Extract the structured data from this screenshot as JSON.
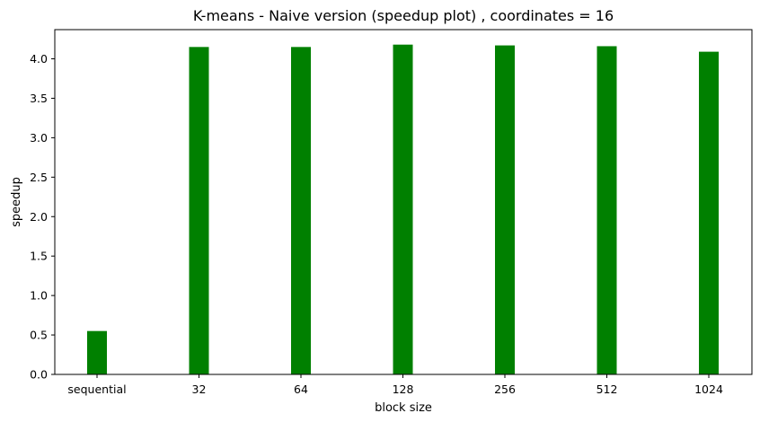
{
  "chart_data": {
    "type": "bar",
    "title": "K-means - Naive version (speedup plot) , coordinates = 16",
    "xlabel": "block size",
    "ylabel": "speedup",
    "categories": [
      "sequential",
      "32",
      "64",
      "128",
      "256",
      "512",
      "1024"
    ],
    "values": [
      0.55,
      4.15,
      4.15,
      4.18,
      4.17,
      4.16,
      4.09
    ],
    "ylim": [
      0,
      4.37
    ],
    "yticks": [
      "0.0",
      "0.5",
      "1.0",
      "1.5",
      "2.0",
      "2.5",
      "3.0",
      "3.5",
      "4.0"
    ],
    "bar_color": "#008000",
    "grid": false,
    "legend": "none"
  }
}
